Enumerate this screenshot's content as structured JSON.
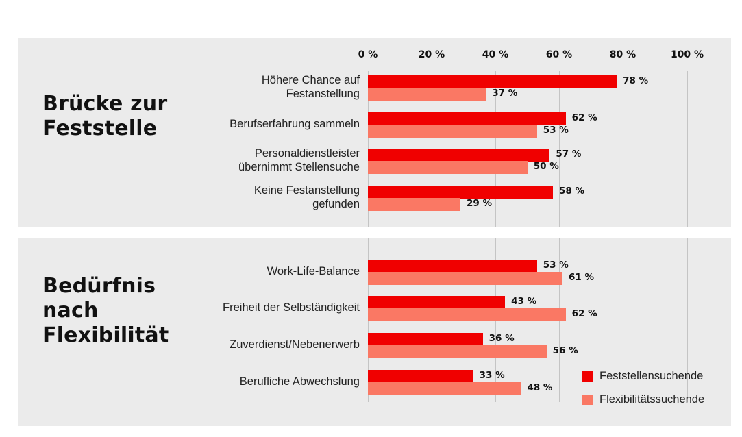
{
  "colors": {
    "feststellensuchende": "#f00000",
    "flexibilitaetssuchende": "#fa7864",
    "panel_bg": "#ebebeb"
  },
  "sections": [
    {
      "title_line1": "Brücke zur",
      "title_line2": "Feststelle",
      "title_line3": ""
    },
    {
      "title_line1": "Bedürfnis",
      "title_line2": "nach",
      "title_line3": "Flexibilität"
    }
  ],
  "axis": {
    "ticks": [
      "0 %",
      "20 %",
      "40 %",
      "60 %",
      "80 %",
      "100 %"
    ]
  },
  "categories": [
    {
      "line1": "Höhere Chance auf",
      "line2": "Festanstellung",
      "v1": "78 %",
      "v2": "37 %"
    },
    {
      "line1": "Berufserfahrung sammeln",
      "line2": "",
      "v1": "62 %",
      "v2": "53 %"
    },
    {
      "line1": "Personaldienstleister",
      "line2": "übernimmt Stellensuche",
      "v1": "57 %",
      "v2": "50 %"
    },
    {
      "line1": "Keine Festanstellung",
      "line2": "gefunden",
      "v1": "58 %",
      "v2": "29 %"
    },
    {
      "line1": "Work-Life-Balance",
      "line2": "",
      "v1": "53 %",
      "v2": "61 %"
    },
    {
      "line1": "Freiheit der Selbständigkeit",
      "line2": "",
      "v1": "43 %",
      "v2": "62 %"
    },
    {
      "line1": "Zuverdienst/Nebenerwerb",
      "line2": "",
      "v1": "36 %",
      "v2": "56 %"
    },
    {
      "line1": "Berufliche Abwechslung",
      "line2": "",
      "v1": "33 %",
      "v2": "48 %"
    }
  ],
  "legend": [
    {
      "label": "Feststellensuchende"
    },
    {
      "label": "Flexibilitätssuchende"
    }
  ],
  "chart_data": {
    "type": "bar",
    "orientation": "horizontal",
    "title": "",
    "groups": [
      {
        "name": "Brücke zur Feststelle",
        "categories": [
          "Höhere Chance auf Festanstellung",
          "Berufserfahrung sammeln",
          "Personaldienstleister übernimmt Stellensuche",
          "Keine Festanstellung gefunden"
        ]
      },
      {
        "name": "Bedürfnis nach Flexibilität",
        "categories": [
          "Work-Life-Balance",
          "Freiheit der Selbständigkeit",
          "Zuverdienst/Nebenerwerb",
          "Berufliche Abwechslung"
        ]
      }
    ],
    "categories": [
      "Höhere Chance auf Festanstellung",
      "Berufserfahrung sammeln",
      "Personaldienstleister übernimmt Stellensuche",
      "Keine Festanstellung gefunden",
      "Work-Life-Balance",
      "Freiheit der Selbständigkeit",
      "Zuverdienst/Nebenerwerb",
      "Berufliche Abwechslung"
    ],
    "series": [
      {
        "name": "Feststellensuchende",
        "color": "#f00000",
        "values": [
          78,
          62,
          57,
          58,
          53,
          43,
          36,
          33
        ]
      },
      {
        "name": "Flexibilitätssuchende",
        "color": "#fa7864",
        "values": [
          37,
          53,
          50,
          29,
          61,
          62,
          56,
          48
        ]
      }
    ],
    "xlabel": "",
    "ylabel": "",
    "xlim": [
      0,
      100
    ],
    "x_ticks": [
      0,
      20,
      40,
      60,
      80,
      100
    ],
    "tick_format": "{} %",
    "axis_position": "top",
    "grid": true,
    "legend_position": "bottom-right",
    "data_labels": true
  }
}
